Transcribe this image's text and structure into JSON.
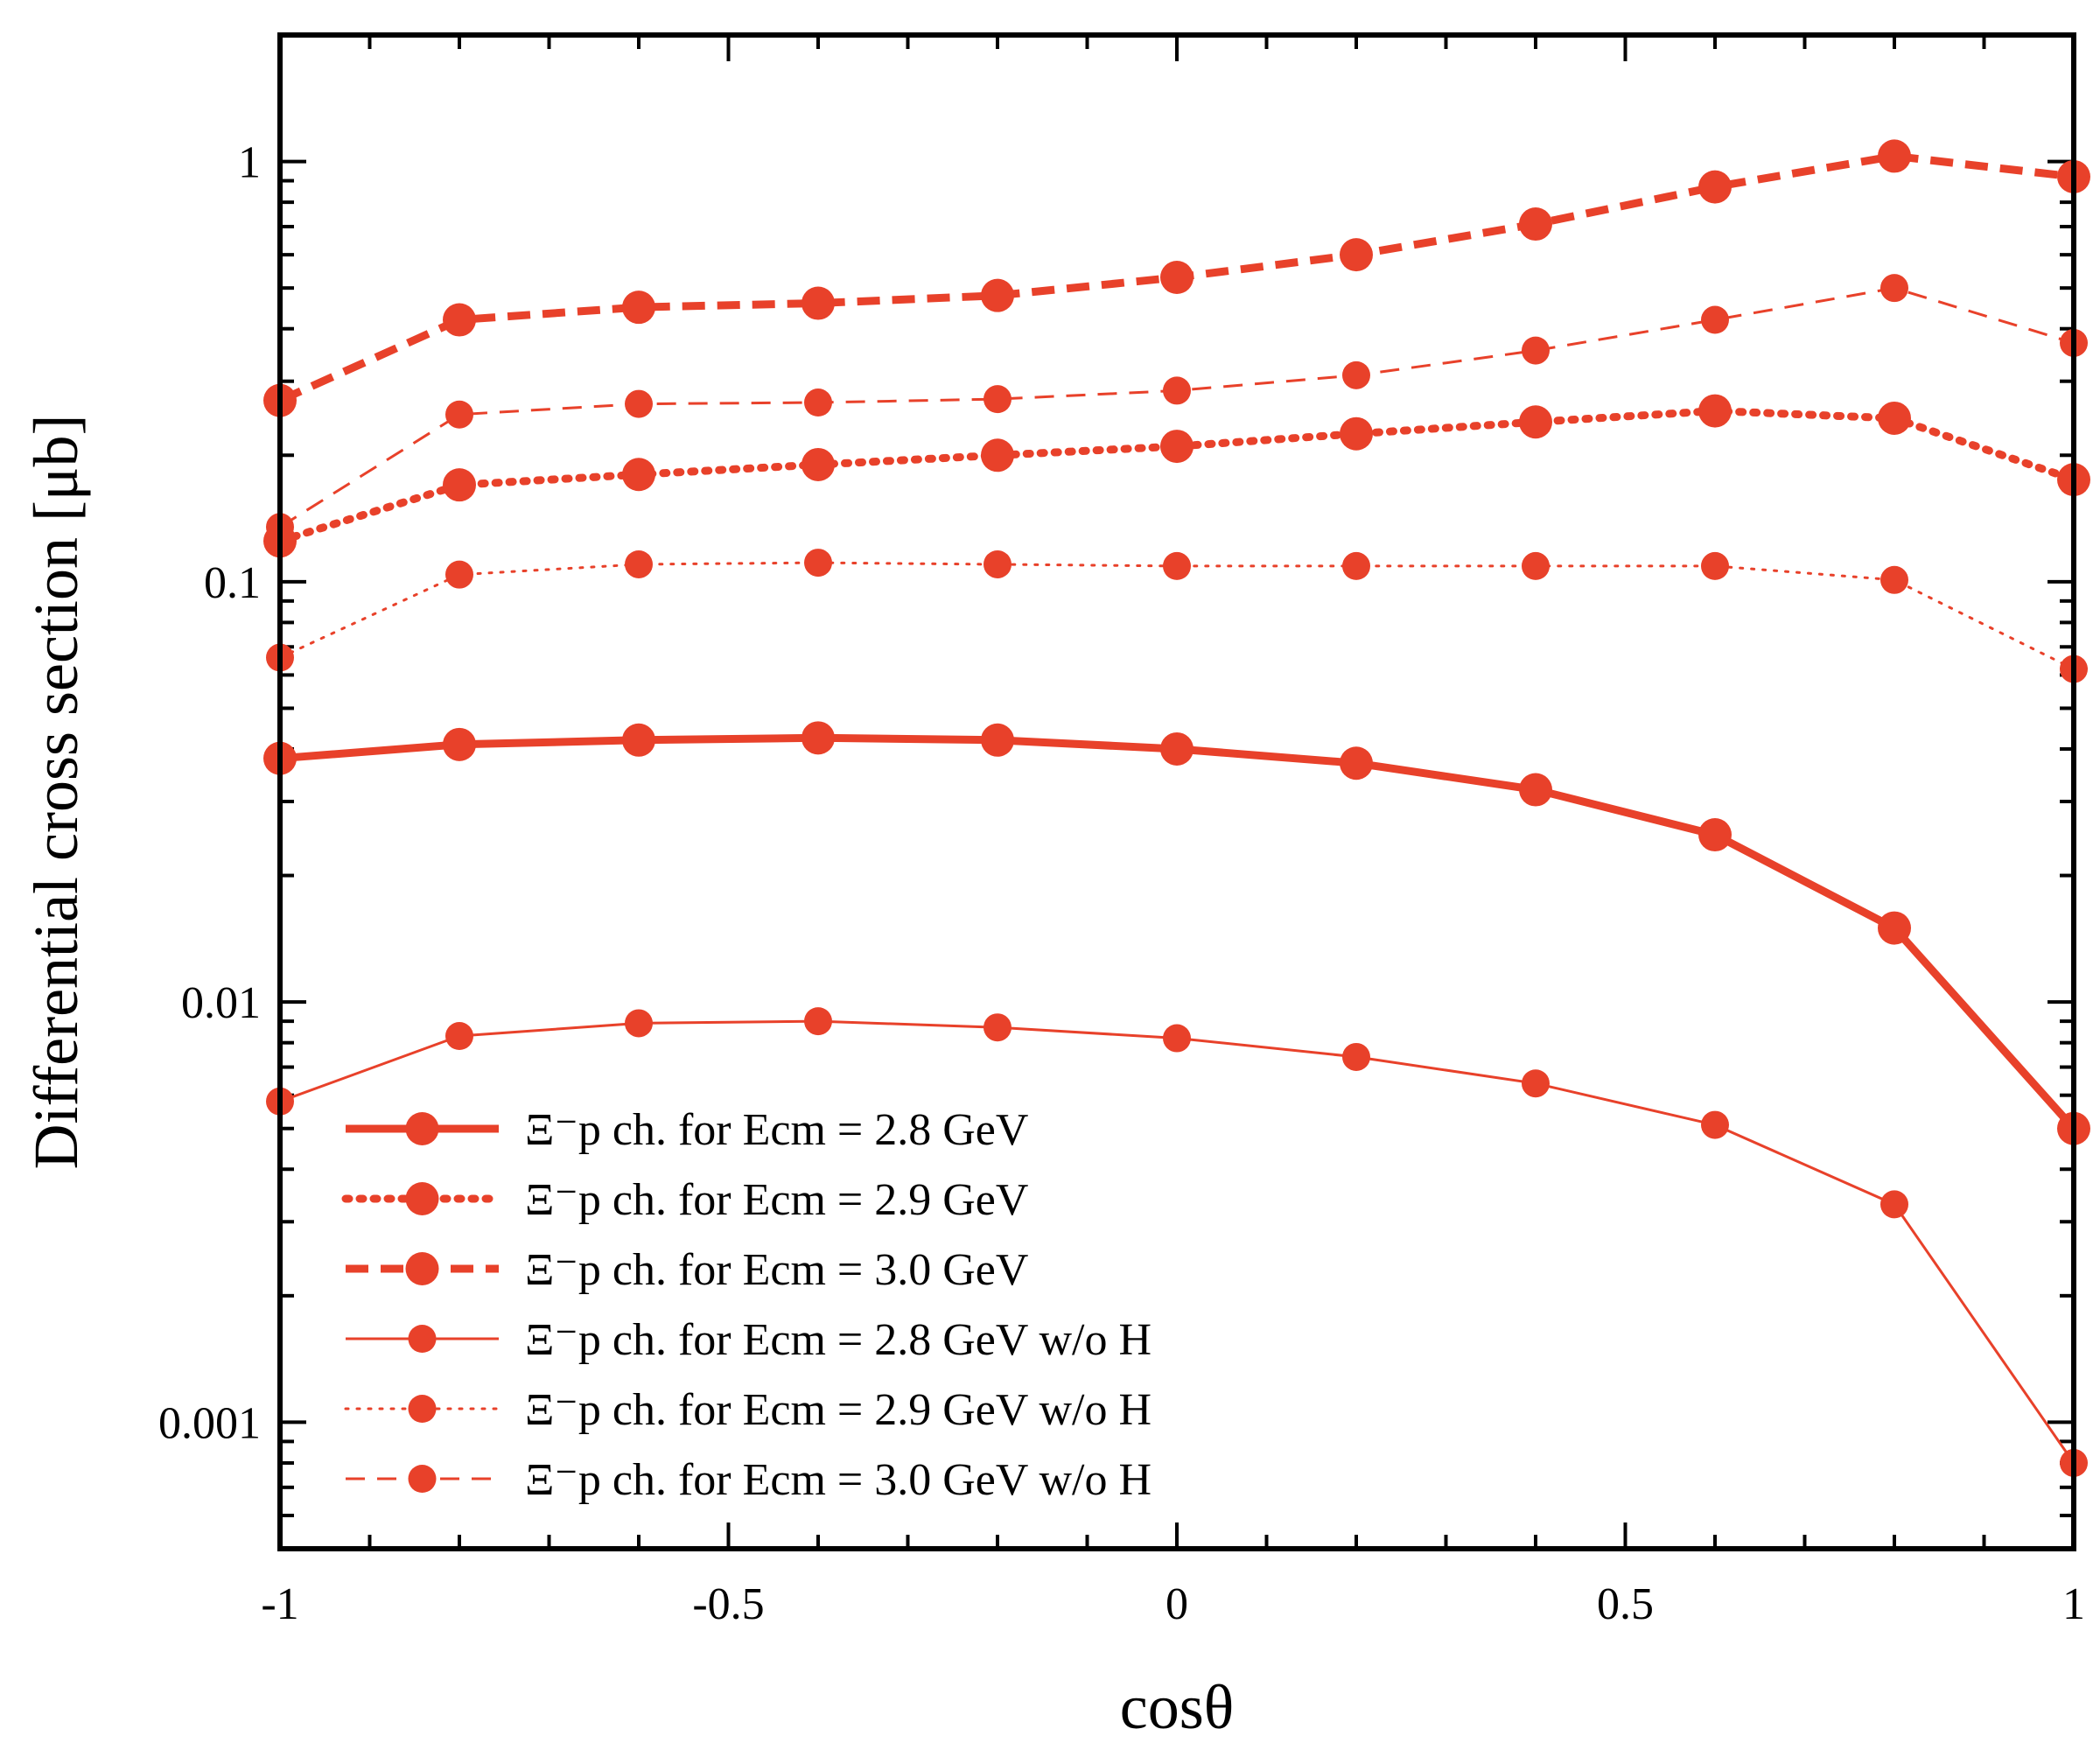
{
  "chart_data": {
    "type": "line",
    "xlabel": "cosθ",
    "ylabel": "Differential cross section [μb]",
    "yscale": "log",
    "xlim": [
      -1,
      1
    ],
    "ylim": [
      0.0005,
      2
    ],
    "x_ticks": [
      {
        "value": -1,
        "label": "-1"
      },
      {
        "value": -0.5,
        "label": "-0.5"
      },
      {
        "value": 0,
        "label": "0"
      },
      {
        "value": 0.5,
        "label": "0.5"
      },
      {
        "value": 1,
        "label": "1"
      }
    ],
    "y_ticks": [
      {
        "value": 0.001,
        "label": "0.001"
      },
      {
        "value": 0.01,
        "label": "0.01"
      },
      {
        "value": 0.1,
        "label": "0.1"
      },
      {
        "value": 1,
        "label": "1"
      }
    ],
    "color": "#e8412a",
    "x": [
      -1,
      -0.8,
      -0.6,
      -0.4,
      -0.2,
      0,
      0.2,
      0.4,
      0.6,
      0.8,
      1
    ],
    "series": [
      {
        "name": "2.8 GeV",
        "label": "Ξ⁻p ch. for Ecm = 2.8 GeV",
        "style": "solid",
        "weight": "thick",
        "values": [
          0.038,
          0.041,
          0.042,
          0.0425,
          0.042,
          0.04,
          0.037,
          0.032,
          0.025,
          0.015,
          0.005
        ]
      },
      {
        "name": "2.9 GeV",
        "label": "Ξ⁻p ch. for Ecm = 2.9 GeV",
        "style": "dotted",
        "weight": "thick",
        "values": [
          0.125,
          0.17,
          0.18,
          0.19,
          0.2,
          0.21,
          0.225,
          0.24,
          0.255,
          0.245,
          0.175
        ]
      },
      {
        "name": "3.0 GeV",
        "label": "Ξ⁻p ch. for Ecm = 3.0 GeV",
        "style": "dashed",
        "weight": "thick",
        "values": [
          0.27,
          0.42,
          0.45,
          0.46,
          0.48,
          0.53,
          0.6,
          0.71,
          0.87,
          1.03,
          0.92
        ]
      },
      {
        "name": "2.8 GeV w/o H",
        "label": "Ξ⁻p ch. for Ecm = 2.8 GeV w/o H",
        "style": "solid",
        "weight": "thin",
        "values": [
          0.0058,
          0.0083,
          0.0089,
          0.009,
          0.0087,
          0.0082,
          0.0074,
          0.0064,
          0.0051,
          0.0033,
          0.0008
        ]
      },
      {
        "name": "2.9 GeV w/o H",
        "label": "Ξ⁻p ch. for Ecm = 2.9 GeV w/o H",
        "style": "dotted",
        "weight": "thin",
        "values": [
          0.066,
          0.104,
          0.11,
          0.111,
          0.11,
          0.109,
          0.109,
          0.109,
          0.109,
          0.101,
          0.062
        ]
      },
      {
        "name": "3.0 GeV w/o H",
        "label": "Ξ⁻p ch. for Ecm = 3.0 GeV w/o H",
        "style": "dashed",
        "weight": "thin",
        "values": [
          0.135,
          0.25,
          0.265,
          0.267,
          0.272,
          0.285,
          0.31,
          0.355,
          0.42,
          0.5,
          0.37
        ]
      }
    ],
    "legend": "bottom-left"
  }
}
